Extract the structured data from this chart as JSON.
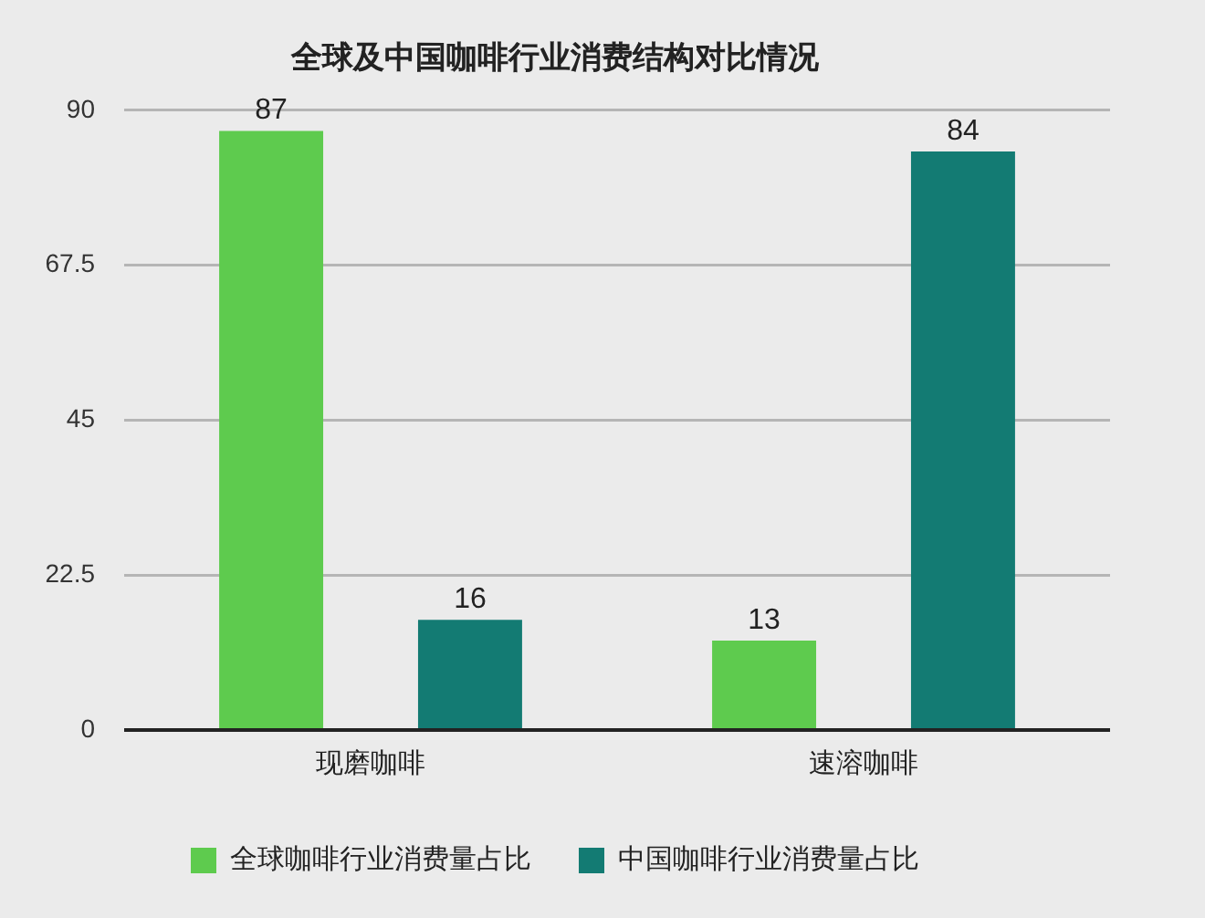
{
  "chart_data": {
    "type": "bar",
    "title": "全球及中国咖啡行业消费结构对比情况",
    "categories": [
      "现磨咖啡",
      "速溶咖啡"
    ],
    "series": [
      {
        "name": "全球咖啡行业消费量占比",
        "color": "#5ecb4e",
        "values": [
          87,
          13
        ]
      },
      {
        "name": "中国咖啡行业消费量占比",
        "color": "#137b73",
        "values": [
          16,
          84
        ]
      }
    ],
    "ylim": [
      0,
      90
    ],
    "yticks": [
      0,
      22.5,
      45,
      67.5,
      90
    ],
    "grid": "y",
    "legend": "bottom",
    "data_labels": true
  }
}
